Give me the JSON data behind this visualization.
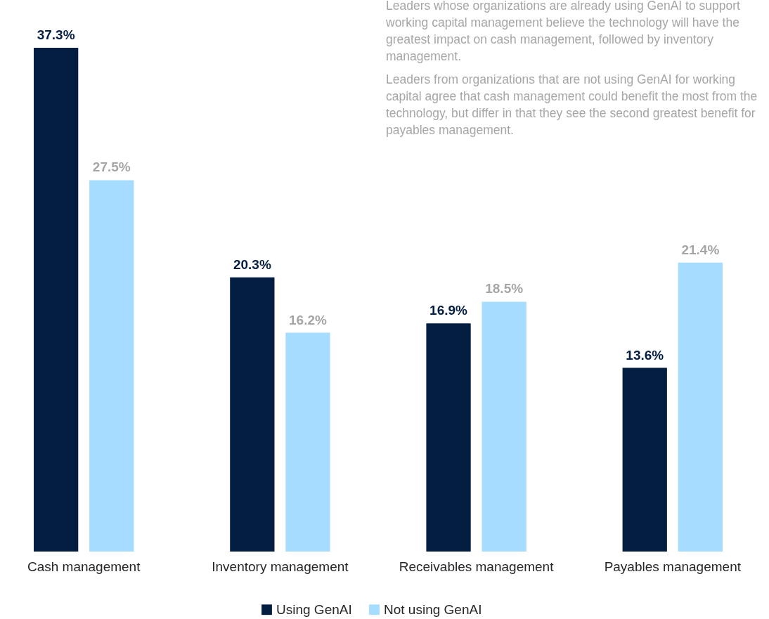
{
  "chart_data": {
    "type": "bar",
    "categories": [
      "Cash management",
      "Inventory management",
      "Receivables management",
      "Payables management"
    ],
    "series": [
      {
        "name": "Using GenAI",
        "color": "#041e42",
        "values": [
          37.3,
          20.3,
          16.9,
          13.6
        ],
        "value_labels": [
          "37.3%",
          "20.3%",
          "16.9%",
          "13.6%"
        ]
      },
      {
        "name": "Not using GenAI",
        "color": "#a5dcff",
        "values": [
          27.5,
          16.2,
          18.5,
          21.4
        ],
        "value_labels": [
          "27.5%",
          "16.2%",
          "18.5%",
          "21.4%"
        ]
      }
    ],
    "annotations": [
      "Leaders whose organizations are already using GenAI to support working capital management believe the technology will have the greatest impact on cash management, followed by inventory management.",
      "Leaders from organizations that are not using GenAI for working capital agree that cash management could benefit the most from the technology, but differ in that they see the second greatest benefit for payables management."
    ],
    "legend": "bottom"
  }
}
